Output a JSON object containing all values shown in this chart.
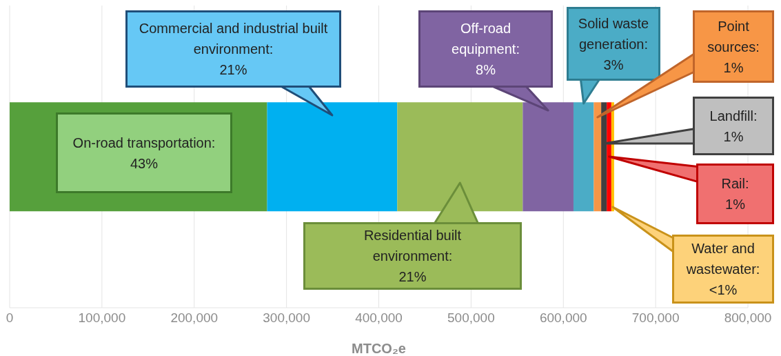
{
  "chart_data": {
    "type": "bar",
    "orientation": "horizontal",
    "stacked": true,
    "categories": [
      null
    ],
    "xlabel": "MTCO₂e",
    "xlim": [
      0,
      800000
    ],
    "xticks": [
      0,
      {
        "value": 100000,
        "label": "100,000"
      },
      {
        "value": 200000,
        "label": "200,000"
      },
      {
        "value": 300000,
        "label": "300,000"
      },
      {
        "value": 400000,
        "label": "400,000"
      },
      {
        "value": 500000,
        "label": "500,000"
      },
      {
        "value": 600000,
        "label": "600,000"
      },
      {
        "value": 700000,
        "label": "700,000"
      },
      {
        "value": 800000,
        "label": "800,000"
      }
    ],
    "grid": "x",
    "series": [
      {
        "color": "#56a03c",
        "values": [
          279000
        ]
      },
      {
        "color": "#00b0f0",
        "values": [
          141000
        ]
      },
      {
        "color": "#9bbb59",
        "values": [
          136000
        ]
      },
      {
        "color": "#8064a2",
        "values": [
          55000
        ]
      },
      {
        "color": "#4bacc6",
        "values": [
          22000
        ]
      },
      {
        "color": "#f79646",
        "values": [
          8000
        ]
      },
      {
        "color": "#404040",
        "values": [
          6000
        ]
      },
      {
        "color": "#ff0000",
        "values": [
          5000
        ]
      },
      {
        "color": "#ffc000",
        "values": [
          3000
        ]
      }
    ],
    "annotations": [
      "On-road transportation: 43%",
      "Commercial and industrial built environment: 21%",
      "Residential built environment: 21%",
      "Off-road equipment: 8%",
      "Solid waste generation: 3%",
      "Point sources: 1%",
      "Landfill: 1%",
      "Rail: 1%",
      "Water and wastewater: <1%"
    ]
  }
}
